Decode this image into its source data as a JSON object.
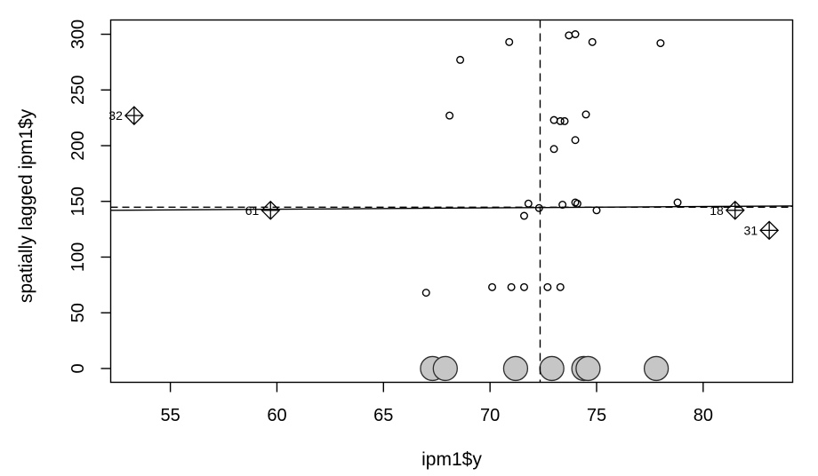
{
  "window": {
    "background": "#ffffff"
  },
  "chart_data": {
    "type": "scatter",
    "title": "",
    "xlabel": "ipm1$y",
    "ylabel": "spatially lagged ipm1$y",
    "xlim": [
      52.2,
      84.2
    ],
    "ylim": [
      -12.4,
      312.8
    ],
    "x_ticks": [
      55,
      60,
      65,
      70,
      75,
      80
    ],
    "y_ticks": [
      0,
      50,
      100,
      150,
      200,
      250,
      300
    ],
    "grid": false,
    "legend": "none",
    "points": [
      [
        70.9,
        293
      ],
      [
        73.7,
        299
      ],
      [
        74.0,
        300
      ],
      [
        74.8,
        293
      ],
      [
        78.0,
        292
      ],
      [
        68.6,
        277
      ],
      [
        68.1,
        227
      ],
      [
        73.0,
        223
      ],
      [
        73.3,
        222
      ],
      [
        73.5,
        222
      ],
      [
        74.5,
        228
      ],
      [
        74.0,
        205
      ],
      [
        73.0,
        197
      ],
      [
        71.8,
        148
      ],
      [
        72.3,
        144
      ],
      [
        71.6,
        137
      ],
      [
        73.4,
        147
      ],
      [
        74.0,
        149
      ],
      [
        74.1,
        148
      ],
      [
        75.0,
        142
      ],
      [
        78.8,
        149
      ],
      [
        67.0,
        68
      ],
      [
        70.1,
        73
      ],
      [
        71.0,
        73
      ],
      [
        71.6,
        73
      ],
      [
        72.7,
        73
      ],
      [
        73.3,
        73
      ]
    ],
    "labeled_points": [
      {
        "label": "32",
        "x": 53.3,
        "y": 227
      },
      {
        "label": "61",
        "x": 59.7,
        "y": 142
      },
      {
        "label": "18",
        "x": 81.5,
        "y": 142
      },
      {
        "label": "31",
        "x": 83.1,
        "y": 124
      }
    ],
    "zero_line_circles": {
      "y": 0,
      "x": [
        67.3,
        67.9,
        71.2,
        72.9,
        74.4,
        74.6,
        77.8
      ]
    },
    "mean_x_vline": 72.35,
    "mean_wx_hline": 144.8,
    "regression_line": {
      "x": [
        52.2,
        84.2
      ],
      "y": [
        142.0,
        145.9
      ]
    },
    "colors": {
      "foreground": "#000000",
      "influence_fill": "#c6c6c6",
      "influence_stroke": "#2e2e2e",
      "background": "#ffffff"
    }
  }
}
